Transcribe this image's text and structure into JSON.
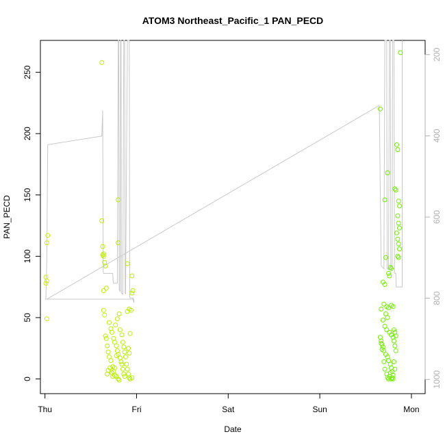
{
  "chart_data": {
    "type": "scatter",
    "title": "ATOM3 Northeast_Pacific_1 PAN_PECD",
    "xlabel": "Date",
    "ylabel": "PAN_PECD",
    "xlim": [
      -0.05,
      4.15
    ],
    "ylim": [
      -12,
      276
    ],
    "x_ticks": [
      {
        "value": 0,
        "label": "Thu"
      },
      {
        "value": 1,
        "label": "Fri"
      },
      {
        "value": 2,
        "label": "Sat"
      },
      {
        "value": 3,
        "label": "Sun"
      },
      {
        "value": 4,
        "label": "Mon"
      }
    ],
    "y_ticks": [
      0,
      50,
      100,
      150,
      200,
      250
    ],
    "secondary_axis": {
      "side": "right",
      "label_color": "#b0b0b0",
      "lim": [
        1035,
        165
      ],
      "ticks": [
        200,
        400,
        600,
        800,
        1000
      ]
    },
    "point_gradient": {
      "start_color": "#ccf000",
      "end_color": "#66ee00"
    },
    "line_color": "#c8c8c8",
    "series": [
      {
        "points": [
          [
            0.01,
            83
          ],
          [
            0.01,
            78
          ],
          [
            0.02,
            80
          ],
          [
            0.02,
            111
          ],
          [
            0.03,
            117
          ],
          [
            0.02,
            49
          ],
          [
            0.62,
            258
          ],
          [
            0.62,
            129
          ],
          [
            0.63,
            108
          ],
          [
            0.63,
            101
          ],
          [
            0.64,
            100
          ],
          [
            0.64,
            102
          ],
          [
            0.65,
            95
          ],
          [
            0.66,
            92
          ],
          [
            0.64,
            72
          ],
          [
            0.67,
            74
          ],
          [
            0.64,
            56
          ],
          [
            0.65,
            52
          ],
          [
            0.66,
            35
          ],
          [
            0.67,
            33
          ],
          [
            0.68,
            27
          ],
          [
            0.69,
            22
          ],
          [
            0.7,
            18
          ],
          [
            0.72,
            15
          ],
          [
            0.74,
            10
          ],
          [
            0.75,
            6
          ],
          [
            0.76,
            3
          ],
          [
            0.78,
            2
          ],
          [
            0.8,
            0
          ],
          [
            0.81,
            -1
          ],
          [
            0.7,
            46
          ],
          [
            0.72,
            41
          ],
          [
            0.73,
            38
          ],
          [
            0.75,
            33
          ],
          [
            0.76,
            30
          ],
          [
            0.78,
            27
          ],
          [
            0.79,
            23
          ],
          [
            0.8,
            20
          ],
          [
            0.82,
            17
          ],
          [
            0.83,
            14
          ],
          [
            0.71,
            9
          ],
          [
            0.73,
            5
          ],
          [
            0.77,
            44
          ],
          [
            0.79,
            49
          ],
          [
            0.81,
            53
          ],
          [
            0.82,
            40
          ],
          [
            0.84,
            36
          ],
          [
            0.85,
            30
          ],
          [
            0.86,
            26
          ],
          [
            0.87,
            22
          ],
          [
            0.88,
            18
          ],
          [
            0.85,
            8
          ],
          [
            0.86,
            4
          ],
          [
            0.87,
            2
          ],
          [
            0.8,
            146
          ],
          [
            0.8,
            111
          ],
          [
            0.9,
            94
          ],
          [
            0.95,
            84
          ],
          [
            0.96,
            72
          ],
          [
            0.95,
            70
          ],
          [
            0.9,
            55
          ],
          [
            0.92,
            57
          ],
          [
            0.94,
            56
          ],
          [
            0.93,
            37
          ],
          [
            0.91,
            25
          ],
          [
            0.92,
            21
          ],
          [
            0.89,
            12
          ],
          [
            0.9,
            8
          ],
          [
            0.91,
            4
          ],
          [
            0.92,
            1
          ],
          [
            0.93,
            0
          ],
          [
            0.95,
            1
          ],
          [
            0.68,
            4
          ],
          [
            0.69,
            7
          ],
          [
            0.74,
            2
          ],
          [
            0.76,
            9
          ],
          [
            0.78,
            19
          ],
          [
            0.84,
            12
          ],
          [
            3.66,
            220
          ],
          [
            3.71,
            146
          ],
          [
            3.74,
            168
          ],
          [
            3.72,
            99
          ],
          [
            3.75,
            86
          ],
          [
            3.77,
            91
          ],
          [
            3.69,
            79
          ],
          [
            3.71,
            77
          ],
          [
            3.76,
            84
          ],
          [
            3.78,
            90
          ],
          [
            3.67,
            57
          ],
          [
            3.7,
            61
          ],
          [
            3.73,
            59
          ],
          [
            3.75,
            58
          ],
          [
            3.78,
            60
          ],
          [
            3.8,
            59
          ],
          [
            3.72,
            53
          ],
          [
            3.74,
            50
          ],
          [
            3.69,
            48
          ],
          [
            3.71,
            43
          ],
          [
            3.73,
            40
          ],
          [
            3.76,
            38
          ],
          [
            3.78,
            36
          ],
          [
            3.8,
            34
          ],
          [
            3.66,
            34
          ],
          [
            3.67,
            31
          ],
          [
            3.68,
            28
          ],
          [
            3.69,
            26
          ],
          [
            3.7,
            23
          ],
          [
            3.72,
            20
          ],
          [
            3.74,
            18
          ],
          [
            3.75,
            15
          ],
          [
            3.77,
            12
          ],
          [
            3.78,
            9
          ],
          [
            3.79,
            6
          ],
          [
            3.8,
            3
          ],
          [
            3.67,
            29
          ],
          [
            3.68,
            24
          ],
          [
            3.7,
            14
          ],
          [
            3.71,
            8
          ],
          [
            3.73,
            4
          ],
          [
            3.74,
            1
          ],
          [
            3.75,
            0
          ],
          [
            3.76,
            2
          ],
          [
            3.77,
            5
          ],
          [
            3.78,
            0
          ],
          [
            3.79,
            1
          ],
          [
            3.8,
            0
          ],
          [
            3.82,
            155
          ],
          [
            3.83,
            154
          ],
          [
            3.84,
            191
          ],
          [
            3.85,
            187
          ],
          [
            3.86,
            145
          ],
          [
            3.87,
            141
          ],
          [
            3.85,
            133
          ],
          [
            3.86,
            127
          ],
          [
            3.87,
            123
          ],
          [
            3.84,
            119
          ],
          [
            3.85,
            114
          ],
          [
            3.86,
            110
          ],
          [
            3.87,
            106
          ],
          [
            3.85,
            100
          ],
          [
            3.86,
            99
          ],
          [
            3.88,
            266
          ],
          [
            3.81,
            40
          ],
          [
            3.82,
            38
          ],
          [
            3.83,
            35
          ],
          [
            3.81,
            31
          ],
          [
            3.82,
            27
          ],
          [
            3.83,
            23
          ],
          [
            3.81,
            14
          ],
          [
            3.82,
            8
          ]
        ]
      },
      {
        "points": [
          [
            0.0,
            65
          ],
          [
            0.01,
            65
          ],
          [
            0.02,
            98
          ],
          [
            0.03,
            191
          ],
          [
            0.62,
            198
          ],
          [
            0.63,
            219
          ],
          [
            0.635,
            88
          ],
          [
            0.64,
            86
          ],
          [
            0.74,
            86
          ],
          [
            0.745,
            78
          ],
          [
            0.79,
            78
          ],
          [
            0.8,
            276
          ],
          [
            0.805,
            276
          ],
          [
            0.81,
            73
          ],
          [
            0.82,
            71
          ],
          [
            0.825,
            276
          ],
          [
            0.83,
            276
          ],
          [
            0.835,
            70
          ],
          [
            0.85,
            69
          ],
          [
            0.86,
            276
          ],
          [
            0.87,
            276
          ],
          [
            0.875,
            70
          ],
          [
            0.88,
            69
          ],
          [
            0.9,
            276
          ],
          [
            0.92,
            276
          ],
          [
            0.925,
            67
          ],
          [
            0.93,
            66
          ],
          [
            0.96,
            66
          ],
          [
            0.97,
            62
          ],
          [
            0.97,
            65
          ],
          [
            0.02,
            65
          ],
          [
            3.65,
            223
          ],
          [
            3.66,
            156
          ],
          [
            3.67,
            92
          ],
          [
            3.7,
            90
          ],
          [
            3.71,
            276
          ],
          [
            3.73,
            276
          ],
          [
            3.735,
            90
          ],
          [
            3.75,
            89
          ],
          [
            3.76,
            276
          ],
          [
            3.77,
            276
          ],
          [
            3.775,
            90
          ],
          [
            3.78,
            89
          ],
          [
            3.79,
            90
          ],
          [
            3.795,
            276
          ],
          [
            3.81,
            276
          ],
          [
            3.815,
            88
          ],
          [
            3.82,
            86
          ],
          [
            3.83,
            86
          ],
          [
            3.835,
            75
          ],
          [
            3.9,
            75
          ],
          [
            3.9,
            276
          ]
        ]
      }
    ]
  }
}
